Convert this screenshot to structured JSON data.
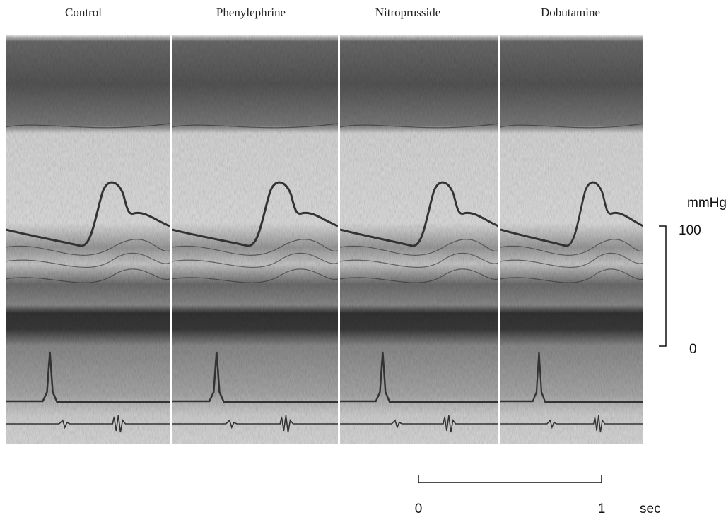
{
  "panels": [
    {
      "label": "Control"
    },
    {
      "label": "Phenylephrine"
    },
    {
      "label": "Nitroprusside"
    },
    {
      "label": "Dobutamine"
    }
  ],
  "pressure_scale": {
    "unit": "mmHg",
    "top": "100",
    "bottom": "0"
  },
  "time_scale": {
    "start": "0",
    "end": "1",
    "unit": "sec"
  }
}
